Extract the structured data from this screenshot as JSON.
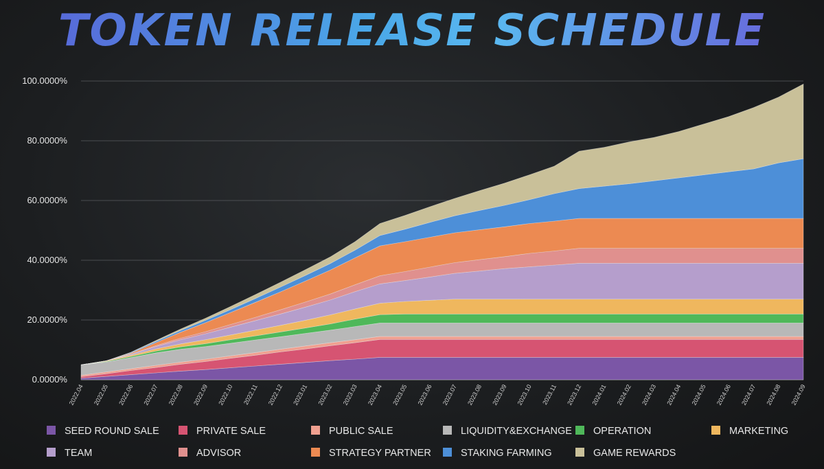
{
  "title": "TOKEN RELEASE SCHEDULE",
  "chart_data": {
    "type": "area",
    "stacked": true,
    "title": "TOKEN RELEASE SCHEDULE",
    "xlabel": "",
    "ylabel": "",
    "ylim": [
      0,
      100
    ],
    "yticks": [
      "0.0000%",
      "20.0000%",
      "40.0000%",
      "60.0000%",
      "80.0000%",
      "100.0000%"
    ],
    "categories": [
      "2022.04",
      "2022.05",
      "2022.06",
      "2022.07",
      "2022.08",
      "2022.09",
      "2022.10",
      "2022.11",
      "2022.12",
      "2023.01",
      "2023.02",
      "2023.03",
      "2023.04",
      "2023.05",
      "2023.06",
      "2023.07",
      "2023.08",
      "2023.09",
      "2023.10",
      "2023.11",
      "2023.12",
      "2024.01",
      "2024.02",
      "2024.03",
      "2024.04",
      "2024.05",
      "2024.06",
      "2024.07",
      "2024.08",
      "2024.09"
    ],
    "legend_position": "bottom",
    "series": [
      {
        "name": "SEED ROUND SALE",
        "color": "#7b56a6",
        "values": [
          0.5,
          1.1,
          1.7,
          2.3,
          2.9,
          3.4,
          4.0,
          4.6,
          5.2,
          5.8,
          6.4,
          6.9,
          7.5,
          7.5,
          7.5,
          7.5,
          7.5,
          7.5,
          7.5,
          7.5,
          7.5,
          7.5,
          7.5,
          7.5,
          7.5,
          7.5,
          7.5,
          7.5,
          7.5,
          7.5
        ]
      },
      {
        "name": "PRIVATE SALE",
        "color": "#d65472",
        "values": [
          0.5,
          0.9,
          1.4,
          1.8,
          2.3,
          2.7,
          3.2,
          3.6,
          4.1,
          4.5,
          5.0,
          5.5,
          6.0,
          6.0,
          6.0,
          6.0,
          6.0,
          6.0,
          6.0,
          6.0,
          6.0,
          6.0,
          6.0,
          6.0,
          6.0,
          6.0,
          6.0,
          6.0,
          6.0,
          6.0
        ]
      },
      {
        "name": "PUBLIC SALE",
        "color": "#f0a090",
        "values": [
          0.5,
          0.6,
          0.6,
          0.7,
          0.7,
          0.8,
          0.8,
          0.9,
          0.9,
          1.0,
          1.0,
          1.0,
          1.0,
          1.0,
          1.0,
          1.0,
          1.0,
          1.0,
          1.0,
          1.0,
          1.0,
          1.0,
          1.0,
          1.0,
          1.0,
          1.0,
          1.0,
          1.0,
          1.0,
          1.0
        ]
      },
      {
        "name": "LIQUIDITY&EXCHANGE",
        "color": "#b8b8b8",
        "values": [
          3.5,
          3.3,
          3.7,
          4.2,
          4.3,
          4.2,
          4.2,
          4.2,
          4.2,
          4.2,
          4.2,
          4.4,
          4.5,
          4.5,
          4.5,
          4.5,
          4.5,
          4.5,
          4.5,
          4.5,
          4.5,
          4.5,
          4.5,
          4.5,
          4.5,
          4.5,
          4.5,
          4.5,
          4.5,
          4.5
        ]
      },
      {
        "name": "OPERATION",
        "color": "#4fb85a",
        "values": [
          0,
          0.2,
          0.4,
          0.6,
          0.8,
          1.0,
          1.2,
          1.4,
          1.6,
          1.8,
          2.1,
          2.5,
          2.8,
          3.0,
          3.0,
          3.0,
          3.0,
          3.0,
          3.0,
          3.0,
          3.0,
          3.0,
          3.0,
          3.0,
          3.0,
          3.0,
          3.0,
          3.0,
          3.0,
          3.0
        ]
      },
      {
        "name": "MARKETING",
        "color": "#efb75e",
        "values": [
          0,
          0.2,
          0.4,
          0.7,
          1.0,
          1.3,
          1.6,
          1.9,
          2.2,
          2.6,
          3.0,
          3.4,
          3.8,
          4.2,
          4.6,
          5.0,
          5.0,
          5.0,
          5.0,
          5.0,
          5.0,
          5.0,
          5.0,
          5.0,
          5.0,
          5.0,
          5.0,
          5.0,
          5.0,
          5.0
        ]
      },
      {
        "name": "TEAM",
        "color": "#b59ecc",
        "values": [
          0,
          0,
          0.3,
          0.8,
          1.4,
          2.0,
          2.6,
          3.2,
          3.8,
          4.4,
          5.0,
          5.8,
          6.5,
          7.0,
          7.8,
          8.6,
          9.4,
          10.2,
          10.8,
          11.4,
          12.0,
          12.0,
          12.0,
          12.0,
          12.0,
          12.0,
          12.0,
          12.0,
          12.0,
          12.0
        ]
      },
      {
        "name": "ADVISOR",
        "color": "#e0908e",
        "values": [
          0,
          0,
          0.1,
          0.3,
          0.5,
          0.7,
          0.9,
          1.1,
          1.4,
          1.7,
          2.0,
          2.3,
          2.7,
          3.0,
          3.3,
          3.6,
          3.8,
          4.0,
          4.5,
          4.7,
          5.0,
          5.0,
          5.0,
          5.0,
          5.0,
          5.0,
          5.0,
          5.0,
          5.0,
          5.0
        ]
      },
      {
        "name": "STRATEGY PARTNER",
        "color": "#ec8a52",
        "values": [
          0,
          0,
          0.3,
          1.0,
          2.0,
          3.0,
          4.0,
          5.0,
          6.0,
          7.0,
          8.0,
          9.0,
          10.0,
          10.0,
          10.0,
          10.0,
          10.0,
          10.0,
          10.0,
          10.0,
          10.0,
          10.0,
          10.0,
          10.0,
          10.0,
          10.0,
          10.0,
          10.0,
          10.0,
          10.0
        ]
      },
      {
        "name": "STAKING FARMING",
        "color": "#4d8fd8",
        "values": [
          0,
          0,
          0.2,
          0.4,
          0.6,
          0.8,
          1.0,
          1.3,
          1.6,
          1.9,
          2.2,
          2.6,
          3.5,
          4.2,
          5.0,
          5.7,
          6.5,
          7.2,
          8.0,
          9.2,
          10.0,
          10.8,
          11.6,
          12.6,
          13.6,
          14.6,
          15.6,
          16.6,
          18.6,
          20.0
        ]
      },
      {
        "name": "GAME REWARDS",
        "color": "#c9c099",
        "values": [
          0,
          0,
          0.1,
          0.3,
          0.5,
          0.7,
          1.0,
          1.3,
          1.6,
          1.9,
          2.2,
          2.8,
          4.0,
          4.6,
          5.2,
          5.8,
          6.6,
          7.4,
          8.3,
          9.2,
          12.5,
          13.0,
          14.0,
          14.5,
          15.5,
          17.0,
          18.5,
          20.5,
          22.0,
          25.0
        ]
      }
    ]
  }
}
